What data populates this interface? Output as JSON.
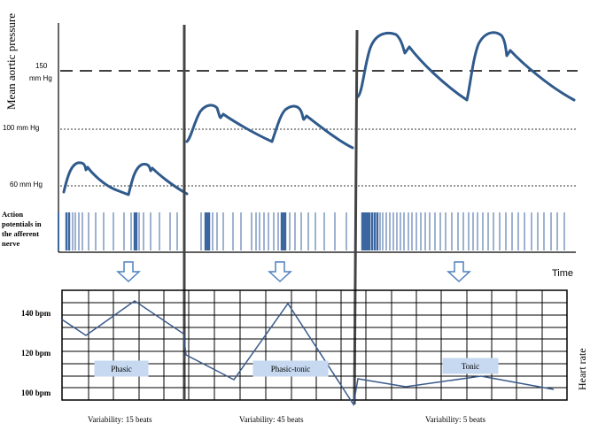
{
  "labels": {
    "y_axis_top": "Mean aortic pressure",
    "p150_line1": "150",
    "p150_line2": "mm Hg",
    "p100": "100 mm Hg",
    "p60": "60 mm Hg",
    "ap_line1": "Action",
    "ap_line2": "potentials in",
    "ap_line3": "the afferent",
    "ap_line4": "nerve",
    "time": "Time",
    "y_axis_bottom": "Heart rate",
    "hr140": "140 bpm",
    "hr120": "120 bpm",
    "hr100": "100 bpm"
  },
  "phases": [
    {
      "name": "Phasic",
      "variability": "Variability: 15 beats"
    },
    {
      "name": "Phasic-tonic",
      "variability": "Variability: 45 beats"
    },
    {
      "name": "Tonic",
      "variability": "Variability: 5 beats"
    }
  ],
  "colors": {
    "curve": "#2f5a8c",
    "spike": "#3c66a0",
    "box_fill": "#c6d9f1",
    "arrow": "#4f81bd",
    "hr_line": "#3a5a8a"
  },
  "icons": {
    "phase_arrow": "down-arrow-icon"
  }
}
